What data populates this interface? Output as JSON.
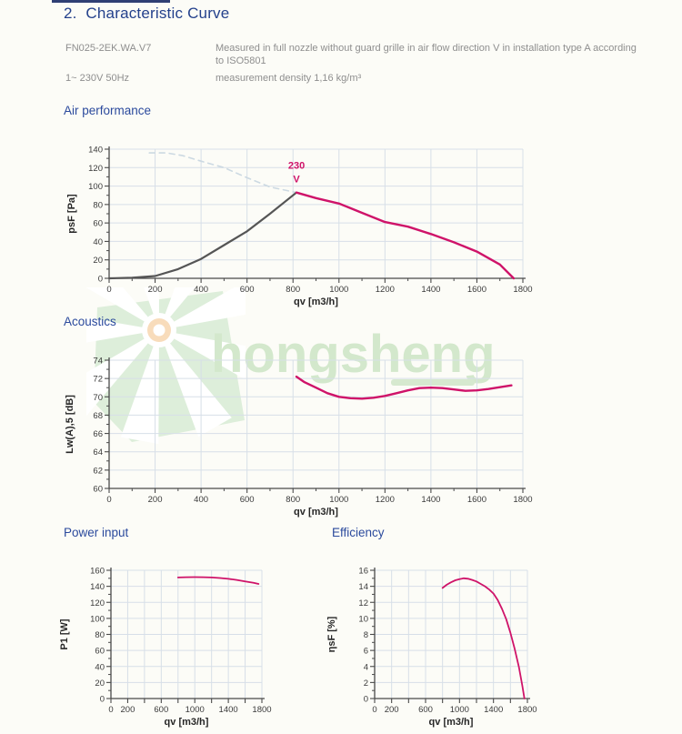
{
  "header": {
    "title": "2.  Characteristic Curve"
  },
  "info": {
    "model": "FN025-2EK.WA.V7",
    "power_supply": "1~ 230V 50Hz",
    "measurement_note": "Measured in full nozzle without guard grille in air flow direction V in installation type A according to ISO5801",
    "measurement_density": "measurement density 1,16 kg/m³"
  },
  "sections": {
    "air": "Air performance",
    "acoustics": "Acoustics",
    "power": "Power input",
    "efficiency": "Efficiency"
  },
  "watermark": {
    "text": "hongsheng"
  },
  "colors": {
    "title_navy": "#24418c",
    "heading_blue": "#2b4a9d",
    "body_gray": "#8e8e8e",
    "curve_pink": "#cf1369",
    "curve_gray": "#555555",
    "stall_dashed": "#ccd9e2",
    "gridline": "#d7dfe8",
    "watermark_green": "#d3e8cc"
  },
  "chart_data": [
    {
      "id": "air-performance",
      "type": "line",
      "title": "Air performance",
      "xlabel": "qv [m3/h]",
      "ylabel": "psF [Pa]",
      "xlim": [
        0,
        1800
      ],
      "ylim": [
        0,
        140
      ],
      "x_major": 200,
      "x_minor": 100,
      "y_major": 20,
      "y_minor": 10,
      "grid": true,
      "series": [
        {
          "name": "stall-line-dashed",
          "color": "#ccd9e2",
          "width": 1.6,
          "dash": "6 5",
          "points": [
            [
              175,
              136
            ],
            [
              250,
              136
            ],
            [
              320,
              133
            ],
            [
              400,
              127
            ],
            [
              500,
              120
            ],
            [
              600,
              109
            ],
            [
              700,
              99
            ],
            [
              815,
              93
            ]
          ]
        },
        {
          "name": "system-resistance-curve",
          "color": "#555555",
          "width": 2.2,
          "points": [
            [
              0,
              0
            ],
            [
              100,
              0.6
            ],
            [
              200,
              2.5
            ],
            [
              300,
              10
            ],
            [
              400,
              21
            ],
            [
              500,
              36
            ],
            [
              600,
              51
            ],
            [
              700,
              70
            ],
            [
              815,
              93
            ]
          ]
        },
        {
          "name": "fan-curve-230V",
          "color": "#cf1369",
          "width": 2.4,
          "points": [
            [
              815,
              93
            ],
            [
              900,
              87
            ],
            [
              1000,
              81
            ],
            [
              1100,
              71
            ],
            [
              1200,
              61
            ],
            [
              1300,
              56
            ],
            [
              1400,
              48
            ],
            [
              1500,
              39
            ],
            [
              1600,
              29
            ],
            [
              1700,
              15
            ],
            [
              1760,
              0
            ]
          ]
        }
      ],
      "annotations": [
        {
          "text": "230",
          "x": 815,
          "y": 119,
          "color": "#cf1369"
        },
        {
          "text": "V",
          "x": 815,
          "y": 104,
          "color": "#cf1369"
        }
      ]
    },
    {
      "id": "acoustics",
      "type": "line",
      "title": "Acoustics",
      "xlabel": "qv [m3/h]",
      "ylabel": "Lw(A),5 [dB]",
      "xlim": [
        0,
        1800
      ],
      "ylim": [
        60,
        74
      ],
      "x_major": 200,
      "x_minor": 100,
      "y_major": 2,
      "y_minor": 1,
      "grid": true,
      "series": [
        {
          "name": "sound-power-curve",
          "color": "#cf1369",
          "width": 2.4,
          "points": [
            [
              815,
              72.2
            ],
            [
              850,
              71.6
            ],
            [
              900,
              71.0
            ],
            [
              950,
              70.4
            ],
            [
              1000,
              70.0
            ],
            [
              1050,
              69.85
            ],
            [
              1100,
              69.8
            ],
            [
              1150,
              69.9
            ],
            [
              1200,
              70.1
            ],
            [
              1250,
              70.4
            ],
            [
              1300,
              70.7
            ],
            [
              1350,
              70.95
            ],
            [
              1400,
              71.0
            ],
            [
              1450,
              70.95
            ],
            [
              1500,
              70.8
            ],
            [
              1550,
              70.65
            ],
            [
              1600,
              70.7
            ],
            [
              1650,
              70.85
            ],
            [
              1700,
              71.05
            ],
            [
              1750,
              71.25
            ]
          ]
        }
      ]
    },
    {
      "id": "power-input",
      "type": "line",
      "title": "Power input",
      "xlabel": "qv [m3/h]",
      "ylabel": "P1 [W]",
      "xlim": [
        0,
        1800
      ],
      "ylim": [
        0,
        160
      ],
      "x_major": 200,
      "y_major": 20,
      "y_minor": 10,
      "xtick_labels": [
        0,
        200,
        600,
        1000,
        1400,
        1800
      ],
      "grid": true,
      "series": [
        {
          "name": "power-curve",
          "color": "#cf1369",
          "width": 1.8,
          "points": [
            [
              800,
              151
            ],
            [
              900,
              151.4
            ],
            [
              1000,
              151.5
            ],
            [
              1100,
              151.4
            ],
            [
              1200,
              151
            ],
            [
              1300,
              150.3
            ],
            [
              1400,
              149.3
            ],
            [
              1500,
              148
            ],
            [
              1600,
              146.2
            ],
            [
              1700,
              144.3
            ],
            [
              1760,
              143
            ]
          ]
        }
      ]
    },
    {
      "id": "efficiency",
      "type": "line",
      "title": "Efficiency",
      "xlabel": "qv [m3/h]",
      "ylabel": "ηsF [%]",
      "xlim": [
        0,
        1800
      ],
      "ylim": [
        0,
        16
      ],
      "x_major": 200,
      "y_major": 2,
      "y_minor": 1,
      "xtick_labels": [
        0,
        200,
        600,
        1000,
        1400,
        1800
      ],
      "grid": true,
      "series": [
        {
          "name": "efficiency-curve",
          "color": "#cf1369",
          "width": 1.8,
          "points": [
            [
              800,
              13.8
            ],
            [
              850,
              14.2
            ],
            [
              900,
              14.5
            ],
            [
              950,
              14.75
            ],
            [
              1000,
              14.9
            ],
            [
              1050,
              15.0
            ],
            [
              1100,
              14.95
            ],
            [
              1150,
              14.8
            ],
            [
              1200,
              14.6
            ],
            [
              1250,
              14.3
            ],
            [
              1300,
              14.0
            ],
            [
              1350,
              13.6
            ],
            [
              1400,
              13.1
            ],
            [
              1450,
              12.3
            ],
            [
              1500,
              11.2
            ],
            [
              1550,
              9.9
            ],
            [
              1600,
              8.2
            ],
            [
              1650,
              6.2
            ],
            [
              1700,
              3.9
            ],
            [
              1740,
              1.6
            ],
            [
              1765,
              0
            ]
          ]
        }
      ]
    }
  ]
}
